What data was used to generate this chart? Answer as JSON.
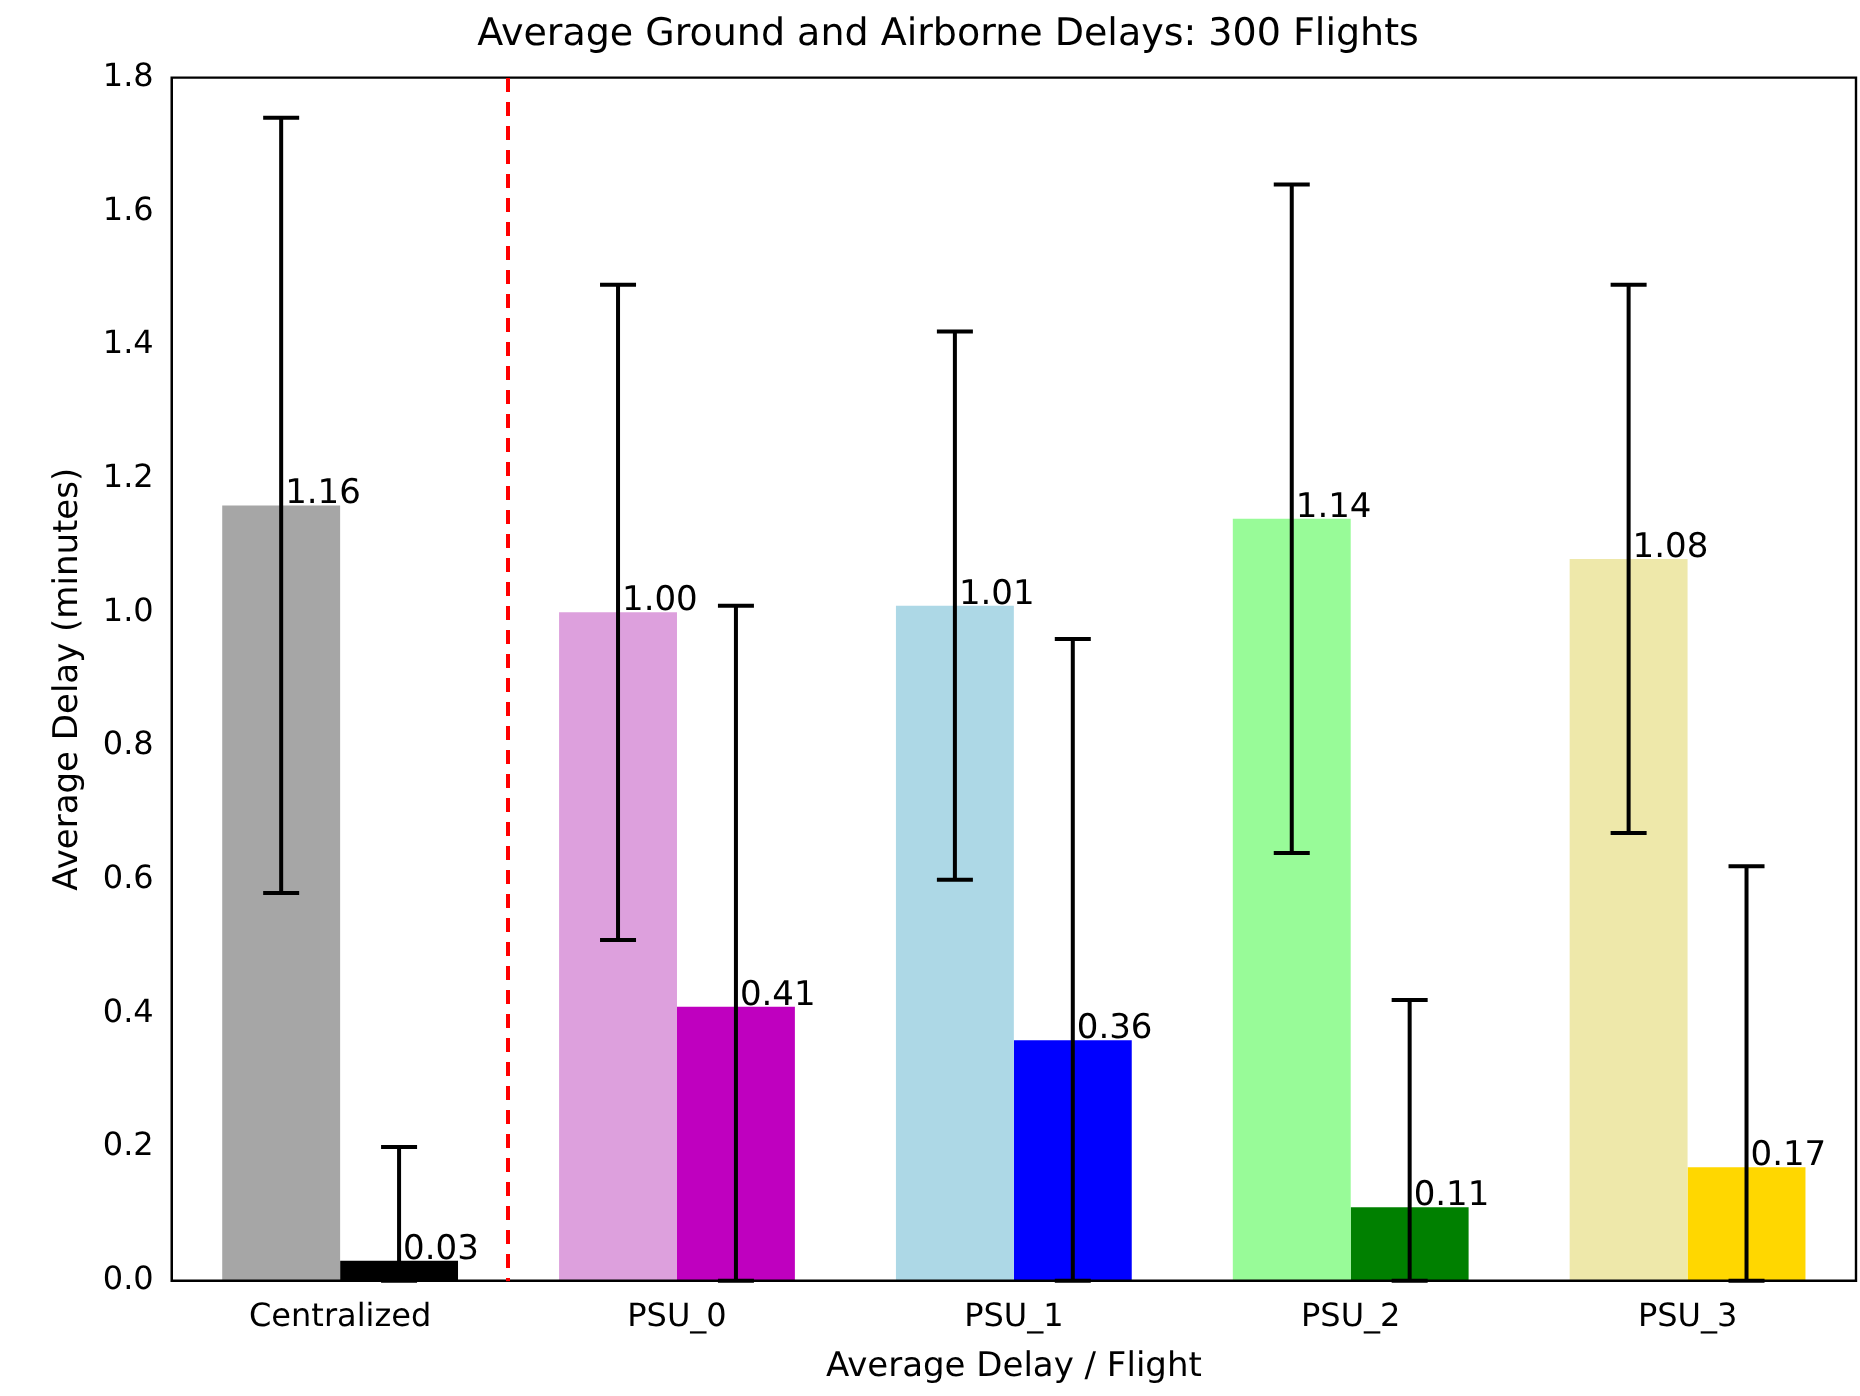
{
  "chart_data": {
    "type": "bar",
    "title": "Average Ground and Airborne Delays: 300 Flights",
    "xlabel": "Average Delay / Flight",
    "ylabel": "Average Delay (minutes)",
    "categories": [
      "Centralized",
      "PSU_0",
      "PSU_1",
      "PSU_2",
      "PSU_3"
    ],
    "series": [
      {
        "colors": [
          "#a6a6a6",
          "#dda0dd",
          "#add8e6",
          "#98fb98",
          "#eee8aa"
        ],
        "values": [
          1.16,
          1.0,
          1.01,
          1.14,
          1.08
        ],
        "value_labels": [
          "1.16",
          "1.00",
          "1.01",
          "1.14",
          "1.08"
        ],
        "errors": [
          0.58,
          0.49,
          0.41,
          0.5,
          0.41
        ]
      },
      {
        "colors": [
          "#000000",
          "#bf00bf",
          "#0000ff",
          "#008000",
          "#ffd700"
        ],
        "values": [
          0.03,
          0.41,
          0.36,
          0.11,
          0.17
        ],
        "value_labels": [
          "0.03",
          "0.41",
          "0.36",
          "0.11",
          "0.17"
        ],
        "errors": [
          [
            0,
            0.2
          ],
          [
            0,
            1.01
          ],
          [
            0,
            0.96
          ],
          [
            0,
            0.42
          ],
          [
            0,
            0.62
          ]
        ]
      }
    ],
    "ylim": [
      0,
      1.8
    ],
    "yticks": [
      {
        "value": 0,
        "label": "0.0"
      },
      0.2,
      0.4,
      0.6,
      0.8,
      {
        "value": 1,
        "label": "1.0"
      },
      1.2,
      1.4,
      1.6,
      1.8
    ],
    "grid": false,
    "legend": false
  }
}
